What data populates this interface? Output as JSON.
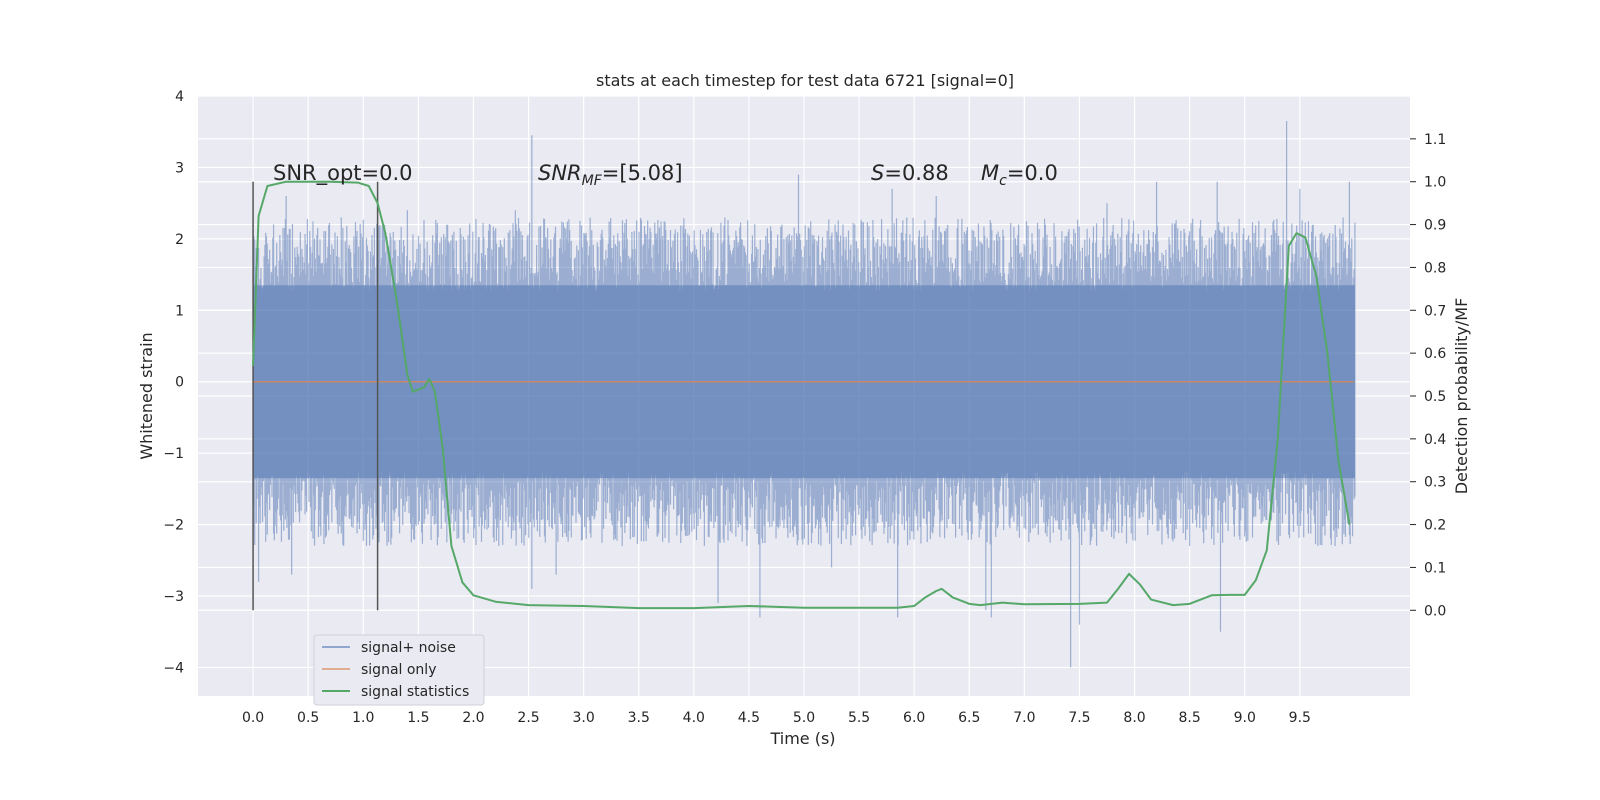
{
  "chart_data": {
    "type": "line",
    "title": "stats at each timestep for test data 6721 [signal=0]",
    "xlabel": "Time (s)",
    "ylabel": "Whitened strain",
    "y2label": "Detection probability/MF",
    "xlim": [
      -0.5,
      10.5
    ],
    "ylim": [
      -4.4,
      4.0
    ],
    "y2lim": [
      -0.2,
      1.2
    ],
    "xticks": [
      0.0,
      0.5,
      1.0,
      1.5,
      2.0,
      2.5,
      3.0,
      3.5,
      4.0,
      4.5,
      5.0,
      5.5,
      6.0,
      6.5,
      7.0,
      7.5,
      8.0,
      8.5,
      9.0,
      9.5
    ],
    "xtick_labels": [
      "0.0",
      "0.5",
      "1.0",
      "1.5",
      "2.0",
      "2.5",
      "3.0",
      "3.5",
      "4.0",
      "4.5",
      "5.0",
      "5.5",
      "6.0",
      "6.5",
      "7.0",
      "7.5",
      "8.0",
      "8.5",
      "9.0",
      "9.5"
    ],
    "yticks": [
      -4,
      -3,
      -2,
      -1,
      0,
      1,
      2,
      3,
      4
    ],
    "ytick_labels": [
      "−4",
      "−3",
      "−2",
      "−1",
      "0",
      "1",
      "2",
      "3",
      "4"
    ],
    "y2ticks": [
      0.0,
      0.1,
      0.2,
      0.3,
      0.4,
      0.5,
      0.6,
      0.7,
      0.8,
      0.9,
      1.0,
      1.1
    ],
    "y2tick_labels": [
      "0.0",
      "0.1",
      "0.2",
      "0.3",
      "0.4",
      "0.5",
      "0.6",
      "0.7",
      "0.8",
      "0.9",
      "1.0",
      "1.1"
    ],
    "grid": true,
    "legend_position": "lower-left",
    "annotations": {
      "snr_opt": "SNR_opt=0.0",
      "snr_mf_var": "SNR",
      "snr_mf_sub": "MF",
      "snr_mf_val": "=[5.08]",
      "s_var": "S",
      "s_val": "=0.88",
      "mc_var": "M",
      "mc_sub": "c",
      "mc_val": "=0.0"
    },
    "markers_x": [
      0.0,
      1.13
    ],
    "series": [
      {
        "name": "signal+ noise",
        "color": "#4c72b0",
        "duration": 10.0,
        "band_low": -2.3,
        "band_high": 2.3,
        "spikes": [
          [
            0.05,
            -2.8
          ],
          [
            0.3,
            2.6
          ],
          [
            0.35,
            -2.7
          ],
          [
            0.8,
            2.3
          ],
          [
            1.4,
            2.4
          ],
          [
            1.5,
            -2.0
          ],
          [
            2.38,
            2.4
          ],
          [
            2.53,
            3.45
          ],
          [
            2.53,
            -2.9
          ],
          [
            2.75,
            -2.7
          ],
          [
            3.35,
            -2.3
          ],
          [
            4.22,
            -3.1
          ],
          [
            4.6,
            -3.3
          ],
          [
            4.8,
            2.2
          ],
          [
            4.95,
            2.9
          ],
          [
            5.25,
            -2.6
          ],
          [
            5.8,
            2.7
          ],
          [
            5.85,
            -3.3
          ],
          [
            6.2,
            2.6
          ],
          [
            6.65,
            -3.2
          ],
          [
            6.7,
            -3.3
          ],
          [
            7.42,
            -4.0
          ],
          [
            7.5,
            -3.4
          ],
          [
            7.75,
            2.5
          ],
          [
            8.2,
            2.8
          ],
          [
            8.5,
            -2.3
          ],
          [
            8.75,
            2.8
          ],
          [
            8.78,
            -3.5
          ],
          [
            9.38,
            3.65
          ],
          [
            9.5,
            2.7
          ],
          [
            9.82,
            -2.3
          ],
          [
            9.95,
            2.8
          ]
        ]
      },
      {
        "name": "signal only",
        "color": "#dd8452",
        "values": [
          [
            0.0,
            0.0
          ],
          [
            9.99,
            0.0
          ]
        ]
      },
      {
        "name": "signal statistics",
        "color": "#55a868",
        "values": [
          [
            0.0,
            0.57
          ],
          [
            0.05,
            0.92
          ],
          [
            0.13,
            0.99
          ],
          [
            0.3,
            1.0
          ],
          [
            0.7,
            1.0
          ],
          [
            0.95,
            0.998
          ],
          [
            1.05,
            0.99
          ],
          [
            1.13,
            0.95
          ],
          [
            1.2,
            0.88
          ],
          [
            1.3,
            0.73
          ],
          [
            1.4,
            0.55
          ],
          [
            1.45,
            0.51
          ],
          [
            1.55,
            0.52
          ],
          [
            1.6,
            0.54
          ],
          [
            1.65,
            0.51
          ],
          [
            1.72,
            0.38
          ],
          [
            1.8,
            0.15
          ],
          [
            1.9,
            0.065
          ],
          [
            2.0,
            0.035
          ],
          [
            2.2,
            0.02
          ],
          [
            2.5,
            0.012
          ],
          [
            3.0,
            0.01
          ],
          [
            3.5,
            0.005
          ],
          [
            4.0,
            0.005
          ],
          [
            4.5,
            0.01
          ],
          [
            5.0,
            0.006
          ],
          [
            5.5,
            0.006
          ],
          [
            5.85,
            0.006
          ],
          [
            6.0,
            0.01
          ],
          [
            6.1,
            0.03
          ],
          [
            6.2,
            0.045
          ],
          [
            6.25,
            0.05
          ],
          [
            6.35,
            0.03
          ],
          [
            6.5,
            0.015
          ],
          [
            6.6,
            0.012
          ],
          [
            6.8,
            0.018
          ],
          [
            7.0,
            0.014
          ],
          [
            7.5,
            0.015
          ],
          [
            7.75,
            0.018
          ],
          [
            7.85,
            0.05
          ],
          [
            7.95,
            0.085
          ],
          [
            8.05,
            0.06
          ],
          [
            8.15,
            0.025
          ],
          [
            8.35,
            0.012
          ],
          [
            8.5,
            0.015
          ],
          [
            8.7,
            0.035
          ],
          [
            8.85,
            0.036
          ],
          [
            9.0,
            0.036
          ],
          [
            9.1,
            0.07
          ],
          [
            9.2,
            0.14
          ],
          [
            9.3,
            0.4
          ],
          [
            9.4,
            0.85
          ],
          [
            9.47,
            0.88
          ],
          [
            9.55,
            0.87
          ],
          [
            9.65,
            0.78
          ],
          [
            9.75,
            0.6
          ],
          [
            9.85,
            0.35
          ],
          [
            9.95,
            0.2
          ]
        ]
      }
    ]
  }
}
